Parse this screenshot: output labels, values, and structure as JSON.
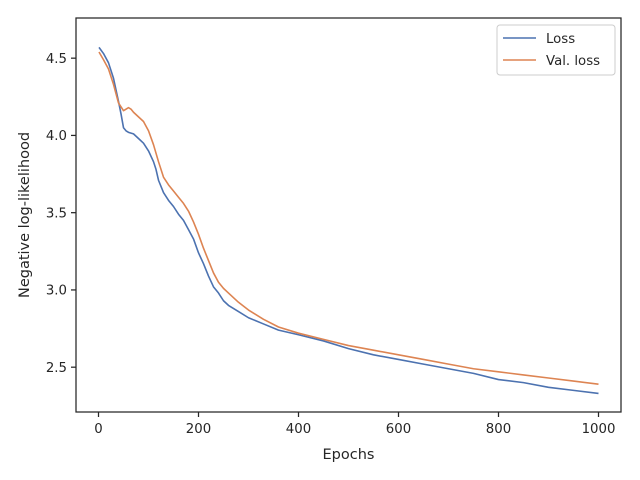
{
  "chart_data": {
    "type": "line",
    "title": "",
    "xlabel": "Epochs",
    "ylabel": "Negative log-likelihood",
    "xlim": [
      -45,
      1045
    ],
    "ylim": [
      2.21,
      4.76
    ],
    "xticks": [
      0,
      200,
      400,
      600,
      800,
      1000
    ],
    "yticks": [
      2.5,
      3.0,
      3.5,
      4.0,
      4.5
    ],
    "xtick_labels": [
      "0",
      "200",
      "400",
      "600",
      "800",
      "1000"
    ],
    "ytick_labels": [
      "2.5",
      "3.0",
      "3.5",
      "4.0",
      "4.5"
    ],
    "grid": false,
    "legend_position": "top-right",
    "series": [
      {
        "name": "Loss",
        "color": "#4c72b0",
        "x": [
          1,
          10,
          20,
          30,
          40,
          45,
          50,
          55,
          60,
          70,
          80,
          90,
          100,
          110,
          115,
          120,
          130,
          140,
          150,
          160,
          170,
          180,
          190,
          200,
          210,
          220,
          230,
          240,
          250,
          260,
          280,
          300,
          330,
          360,
          400,
          450,
          500,
          550,
          600,
          650,
          700,
          750,
          800,
          850,
          900,
          950,
          1000
        ],
        "y": [
          4.57,
          4.53,
          4.47,
          4.37,
          4.22,
          4.14,
          4.05,
          4.03,
          4.02,
          4.01,
          3.98,
          3.95,
          3.9,
          3.83,
          3.78,
          3.71,
          3.63,
          3.58,
          3.54,
          3.49,
          3.45,
          3.39,
          3.33,
          3.24,
          3.17,
          3.09,
          3.02,
          2.98,
          2.93,
          2.9,
          2.86,
          2.82,
          2.78,
          2.74,
          2.71,
          2.67,
          2.62,
          2.58,
          2.55,
          2.52,
          2.49,
          2.46,
          2.42,
          2.4,
          2.37,
          2.35,
          2.33
        ]
      },
      {
        "name": "Val. loss",
        "color": "#dd8452",
        "x": [
          1,
          10,
          20,
          30,
          40,
          50,
          55,
          60,
          65,
          70,
          80,
          90,
          100,
          110,
          120,
          130,
          140,
          150,
          160,
          170,
          180,
          190,
          200,
          210,
          220,
          230,
          240,
          250,
          260,
          280,
          300,
          330,
          360,
          400,
          450,
          500,
          550,
          600,
          650,
          700,
          750,
          800,
          850,
          900,
          950,
          1000
        ],
        "y": [
          4.54,
          4.49,
          4.43,
          4.33,
          4.21,
          4.16,
          4.17,
          4.18,
          4.17,
          4.15,
          4.12,
          4.09,
          4.03,
          3.94,
          3.83,
          3.73,
          3.68,
          3.64,
          3.6,
          3.56,
          3.51,
          3.44,
          3.36,
          3.27,
          3.19,
          3.11,
          3.05,
          3.01,
          2.98,
          2.92,
          2.87,
          2.81,
          2.76,
          2.72,
          2.68,
          2.64,
          2.61,
          2.58,
          2.55,
          2.52,
          2.49,
          2.47,
          2.45,
          2.43,
          2.41,
          2.39
        ]
      }
    ]
  }
}
